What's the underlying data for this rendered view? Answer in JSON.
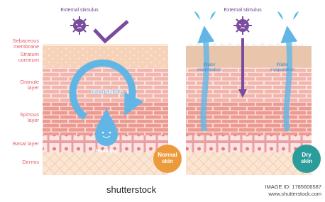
{
  "layer_labels": [
    {
      "lines": [
        "Sebaceous",
        "membrane"
      ]
    },
    {
      "lines": [
        "Stratum",
        "corneum"
      ]
    },
    {
      "lines": [
        "Granule",
        "layer"
      ]
    },
    {
      "lines": [
        "Spinous",
        "layer"
      ]
    },
    {
      "lines": [
        "Basal layer"
      ]
    },
    {
      "lines": [
        "Dermis"
      ]
    }
  ],
  "normal_panel": {
    "stimulus": "External stimulus",
    "moisture": "Moisture",
    "humidity": "Humidity",
    "badge": [
      "Normal",
      "skin"
    ]
  },
  "dry_panel": {
    "stimulus": "External stimulus",
    "evaporation_left": [
      "Water",
      "evaporation"
    ],
    "evaporation_right": [
      "Water",
      "evaporation"
    ],
    "badge": [
      "Dry",
      "skin"
    ]
  },
  "footer": {
    "brand": "shutterstock",
    "image_id": "IMAGE ID: 1785606587",
    "url": "www.shutterstock.com"
  }
}
